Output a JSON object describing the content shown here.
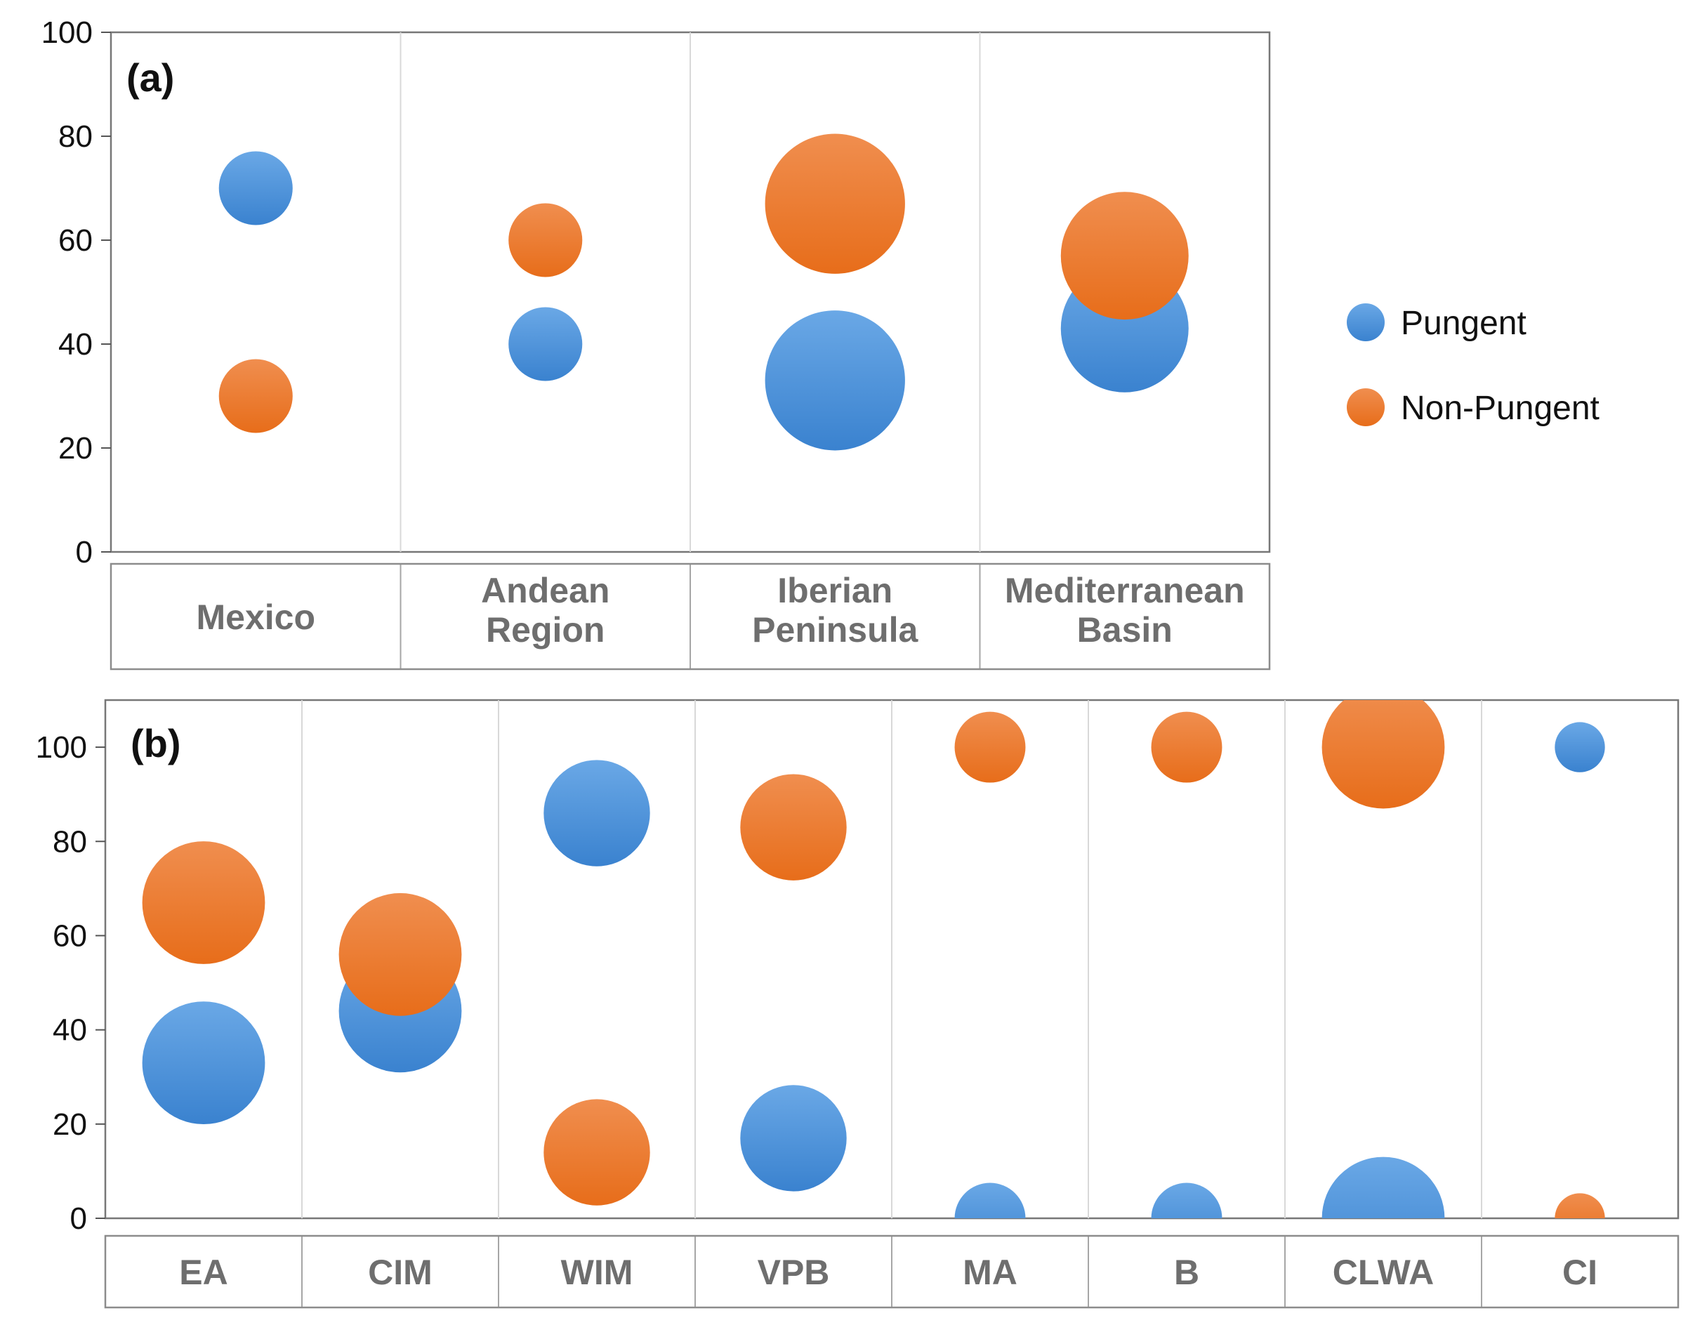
{
  "chart_data": [
    {
      "type": "bubble",
      "panel_label": "(a)",
      "categories": [
        {
          "line1": "Mexico",
          "line2": ""
        },
        {
          "line1": "Andean",
          "line2": "Region"
        },
        {
          "line1": "Iberian",
          "line2": "Peninsula"
        },
        {
          "line1": "Mediterranean",
          "line2": "Basin"
        }
      ],
      "ylim": [
        0,
        100
      ],
      "yticks": [
        "0",
        "20",
        "40",
        "60",
        "80",
        "100"
      ],
      "ytick_values": [
        0,
        20,
        40,
        60,
        80,
        100
      ],
      "series": [
        {
          "name": "Pungent",
          "values": [
            70,
            40,
            33,
            43
          ],
          "sizes": [
            5,
            5,
            18,
            15
          ]
        },
        {
          "name": "Non-Pungent",
          "values": [
            30,
            60,
            67,
            57
          ],
          "sizes": [
            5,
            5,
            18,
            15
          ]
        }
      ]
    },
    {
      "type": "bubble",
      "panel_label": "(b)",
      "categories": [
        {
          "line1": "EA",
          "line2": ""
        },
        {
          "line1": "CIM",
          "line2": ""
        },
        {
          "line1": "WIM",
          "line2": ""
        },
        {
          "line1": "VPB",
          "line2": ""
        },
        {
          "line1": "MA",
          "line2": ""
        },
        {
          "line1": "B",
          "line2": ""
        },
        {
          "line1": "CLWA",
          "line2": ""
        },
        {
          "line1": "CI",
          "line2": ""
        }
      ],
      "ylim": [
        0,
        110
      ],
      "yticks": [
        "0",
        "20",
        "40",
        "60",
        "80",
        "100"
      ],
      "ytick_values": [
        0,
        20,
        40,
        60,
        80,
        100
      ],
      "series": [
        {
          "name": "Pungent",
          "values": [
            33,
            44,
            86,
            17,
            0,
            0,
            0,
            100
          ],
          "sizes": [
            12,
            12,
            9,
            9,
            4,
            4,
            12,
            2
          ]
        },
        {
          "name": "Non-Pungent",
          "values": [
            67,
            56,
            14,
            83,
            100,
            100,
            100,
            0
          ],
          "sizes": [
            12,
            12,
            9,
            9,
            4,
            4,
            12,
            2
          ]
        }
      ]
    }
  ],
  "legend": {
    "items": [
      {
        "label": "Pungent",
        "color": "#4a90d9"
      },
      {
        "label": "Non-Pungent",
        "color": "#ed7d31"
      }
    ]
  }
}
